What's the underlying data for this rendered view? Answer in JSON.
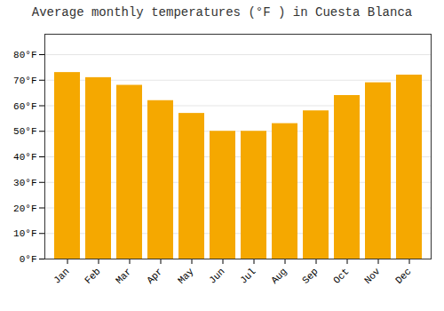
{
  "chart_data": {
    "type": "bar",
    "title": "Average monthly temperatures (°F ) in Cuesta Blanca",
    "categories": [
      "Jan",
      "Feb",
      "Mar",
      "Apr",
      "May",
      "Jun",
      "Jul",
      "Aug",
      "Sep",
      "Oct",
      "Nov",
      "Dec"
    ],
    "values": [
      73,
      71,
      68,
      62,
      57,
      50,
      50,
      53,
      58,
      64,
      69,
      72
    ],
    "color": "#F5A800",
    "ylim": [
      0,
      88
    ],
    "yticks": [
      {
        "value": 0,
        "label": "0°F"
      },
      {
        "value": 10,
        "label": "10°F"
      },
      {
        "value": 20,
        "label": "20°F"
      },
      {
        "value": 30,
        "label": "30°F"
      },
      {
        "value": 40,
        "label": "40°F"
      },
      {
        "value": 50,
        "label": "50°F"
      },
      {
        "value": 60,
        "label": "60°F"
      },
      {
        "value": 70,
        "label": "70°F"
      },
      {
        "value": 80,
        "label": "80°F"
      }
    ],
    "grid": true
  }
}
